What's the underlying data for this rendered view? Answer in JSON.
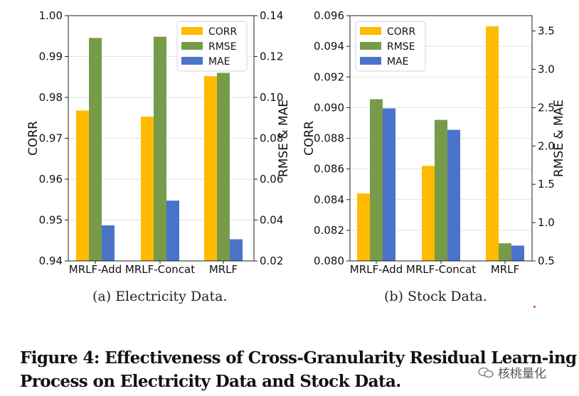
{
  "chart_data": [
    {
      "type": "bar",
      "id": "a",
      "categories": [
        "MRLF-Add",
        "MRLF-Concat",
        "MRLF"
      ],
      "series": [
        {
          "name": "CORR",
          "axis": "left",
          "color": "#ffbb00",
          "values": [
            0.9768,
            0.9753,
            0.9852
          ]
        },
        {
          "name": "RMSE",
          "axis": "right",
          "color": "#789b4a",
          "values": [
            0.1291,
            0.1297,
            0.112
          ]
        },
        {
          "name": "MAE",
          "axis": "right",
          "color": "#4a74c9",
          "values": [
            0.0374,
            0.0495,
            0.0306
          ]
        }
      ],
      "ylabel": "CORR",
      "y2label": "RMSE & MAE",
      "ylim": [
        0.94,
        1.0
      ],
      "y2lim": [
        0.02,
        0.14
      ],
      "yticks": [
        "0.94",
        "0.95",
        "0.96",
        "0.97",
        "0.98",
        "0.99",
        "1.00"
      ],
      "y2ticks": [
        "0.02",
        "0.04",
        "0.06",
        "0.08",
        "0.10",
        "0.12",
        "0.14"
      ],
      "grid": true,
      "legend": "top-right",
      "caption": "(a)  Electricity Data."
    },
    {
      "type": "bar",
      "id": "b",
      "categories": [
        "MRLF-Add",
        "MRLF-Concat",
        "MRLF"
      ],
      "series": [
        {
          "name": "CORR",
          "axis": "left",
          "color": "#ffbb00",
          "values": [
            0.0844,
            0.0862,
            0.0953
          ]
        },
        {
          "name": "RMSE",
          "axis": "right",
          "color": "#789b4a",
          "values": [
            2.61,
            2.34,
            0.73
          ]
        },
        {
          "name": "MAE",
          "axis": "right",
          "color": "#4a74c9",
          "values": [
            2.49,
            2.21,
            0.7
          ]
        }
      ],
      "ylabel": "CORR",
      "y2label": "RMSE & MAE",
      "ylim": [
        0.08,
        0.096
      ],
      "y2lim": [
        0.5,
        3.7
      ],
      "yticks": [
        "0.080",
        "0.082",
        "0.084",
        "0.086",
        "0.088",
        "0.090",
        "0.092",
        "0.094",
        "0.096"
      ],
      "y2ticks": [
        "0.5",
        "1.0",
        "1.5",
        "2.0",
        "2.5",
        "3.0",
        "3.5"
      ],
      "grid": true,
      "legend": "top-left",
      "caption": "(b)  Stock Data."
    }
  ],
  "figure_caption": "Figure 4: Effectiveness of Cross-Granularity Residual Learn-ing Process on Electricity Data and Stock Data.",
  "watermark": "核桃量化"
}
